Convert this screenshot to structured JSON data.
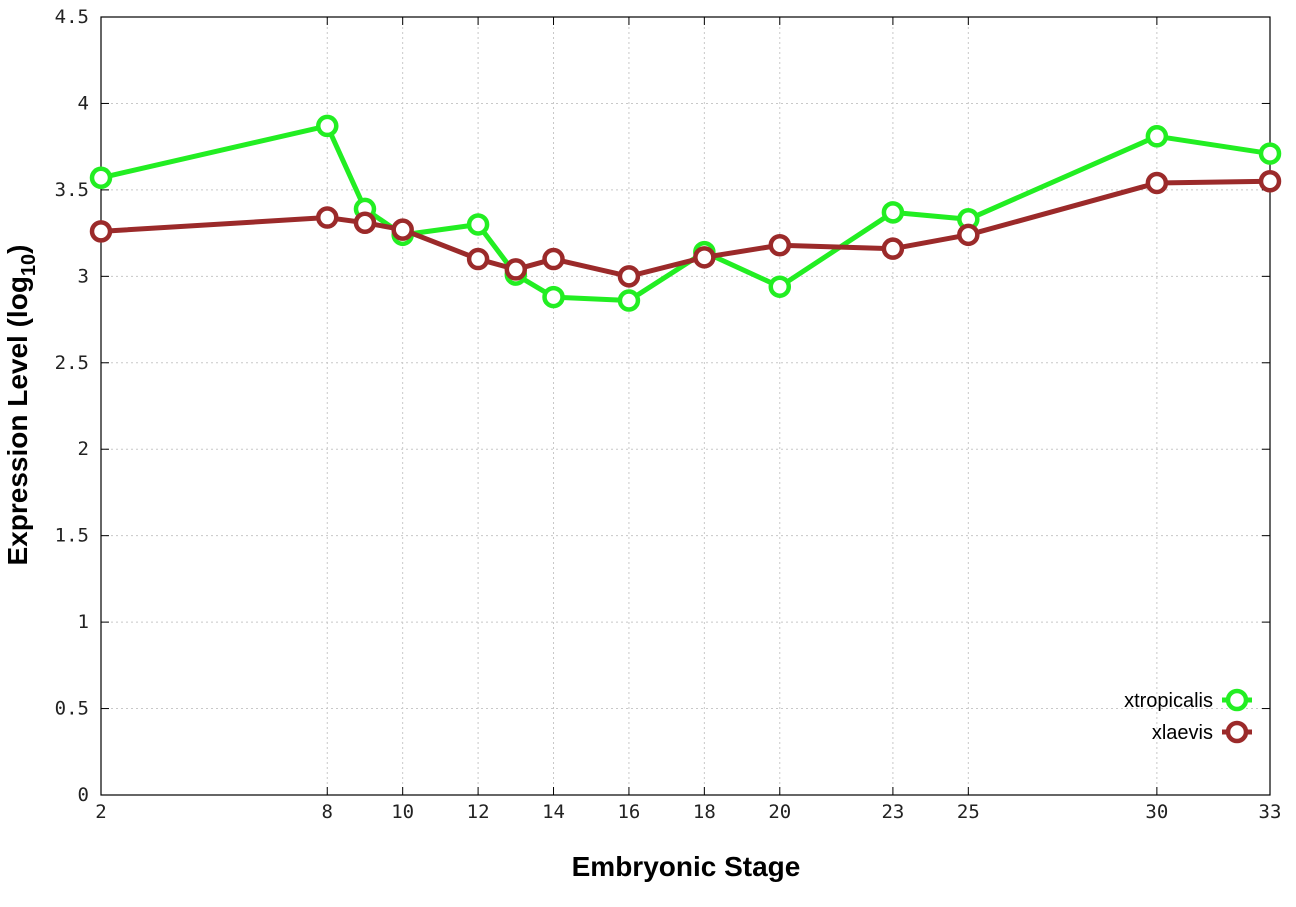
{
  "chart_data": {
    "type": "line",
    "xlabel": "Embryonic Stage",
    "ylabel_main": "Expression Level (log",
    "ylabel_sub": "10",
    "ylabel_close": ")",
    "x": [
      "2",
      "8",
      "9",
      "10",
      "12",
      "13",
      "14",
      "16",
      "18",
      "20",
      "23",
      "25",
      "30",
      "33"
    ],
    "x_tick_labels": [
      "2",
      "8",
      "10",
      "12",
      "14",
      "16",
      "18",
      "20",
      "23",
      "25",
      "30",
      "33"
    ],
    "y_tick_labels": [
      "0",
      "0.5",
      "1",
      "1.5",
      "2",
      "2.5",
      "3",
      "3.5",
      "4",
      "4.5"
    ],
    "y_ticks": [
      0,
      0.5,
      1,
      1.5,
      2,
      2.5,
      3,
      3.5,
      4,
      4.5
    ],
    "ylim": [
      0,
      4.5
    ],
    "grid": true,
    "legend_position": "bottom-right",
    "series": [
      {
        "name": "xtropicalis",
        "color": "#22ee22",
        "values": [
          3.57,
          3.87,
          3.39,
          3.24,
          3.3,
          3.01,
          2.88,
          2.86,
          3.14,
          2.94,
          3.37,
          3.33,
          3.81,
          3.71
        ]
      },
      {
        "name": "xlaevis",
        "color": "#9b2a2a",
        "values": [
          3.26,
          3.34,
          3.31,
          3.27,
          3.1,
          3.04,
          3.1,
          3.0,
          3.11,
          3.18,
          3.16,
          3.24,
          3.54,
          3.55
        ]
      }
    ]
  }
}
